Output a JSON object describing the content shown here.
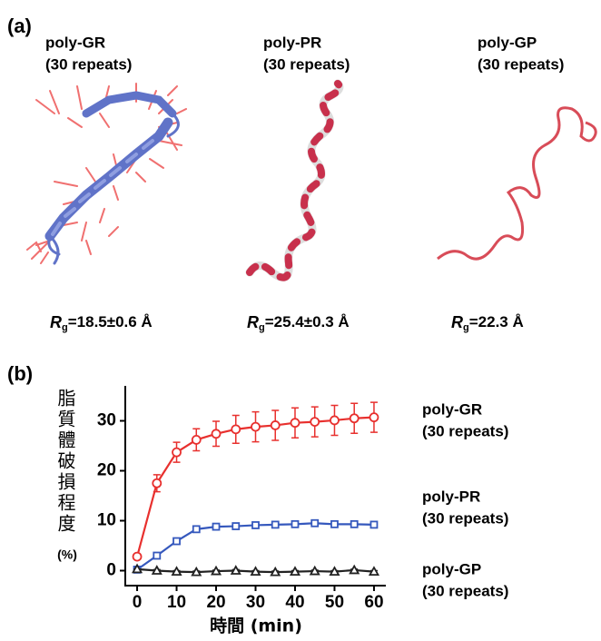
{
  "panel_a": {
    "label": "(a)",
    "molecules": [
      {
        "name": "poly-GR",
        "repeats": "(30 repeats)",
        "rg_symbol": "R",
        "rg_sub": "g",
        "rg_value": "=18.5±0.6 Å"
      },
      {
        "name": "poly-PR",
        "repeats": "(30 repeats)",
        "rg_symbol": "R",
        "rg_sub": "g",
        "rg_value": "=25.4±0.3 Å"
      },
      {
        "name": "poly-GP",
        "repeats": "(30 repeats)",
        "rg_symbol": "R",
        "rg_sub": "g",
        "rg_value": "=22.3 Å"
      }
    ]
  },
  "chart_data": {
    "type": "line",
    "panel_label": "(b)",
    "y_label": "脂質體破損程度",
    "y_label_unit": "(%)",
    "x_label": "時間 (min)",
    "x": [
      0,
      5,
      10,
      15,
      20,
      25,
      30,
      35,
      40,
      45,
      50,
      55,
      60
    ],
    "xlim": [
      -3,
      63
    ],
    "xticks": [
      0,
      10,
      20,
      30,
      40,
      50,
      60
    ],
    "ylim": [
      -3,
      37
    ],
    "yticks": [
      0,
      10,
      20,
      30
    ],
    "series": [
      {
        "name": "poly-GR",
        "name_line2": "(30 repeats)",
        "color": "#e8302e",
        "marker": "circle",
        "values": [
          2.8,
          17.5,
          23.7,
          26.2,
          27.4,
          28.3,
          28.8,
          29.1,
          29.6,
          29.8,
          30.1,
          30.5,
          30.7
        ],
        "errors": [
          0,
          1.7,
          2,
          2.2,
          2.5,
          2.8,
          3,
          3,
          3,
          3,
          3,
          3,
          3
        ]
      },
      {
        "name": "poly-PR",
        "name_line2": "(30 repeats)",
        "color": "#3558bd",
        "marker": "square",
        "values": [
          0.2,
          3.0,
          5.9,
          8.3,
          8.8,
          8.9,
          9.1,
          9.2,
          9.3,
          9.5,
          9.3,
          9.3,
          9.2
        ],
        "errors": [
          0,
          0.3,
          0.4,
          0.5,
          0.4,
          0.4,
          0.4,
          0.4,
          0.4,
          0.4,
          0.4,
          0.4,
          0.4
        ]
      },
      {
        "name": "poly-GP",
        "name_line2": "(30 repeats)",
        "color": "#222222",
        "marker": "triangle",
        "values": [
          0.3,
          0,
          -0.2,
          -0.3,
          -0.1,
          0,
          -0.2,
          -0.3,
          -0.2,
          -0.1,
          -0.2,
          0.1,
          -0.2
        ],
        "errors": [
          0,
          0.2,
          0.2,
          0.2,
          0.2,
          0.2,
          0.2,
          0.2,
          0.2,
          0.2,
          0.2,
          0.2,
          0.2
        ]
      }
    ]
  }
}
